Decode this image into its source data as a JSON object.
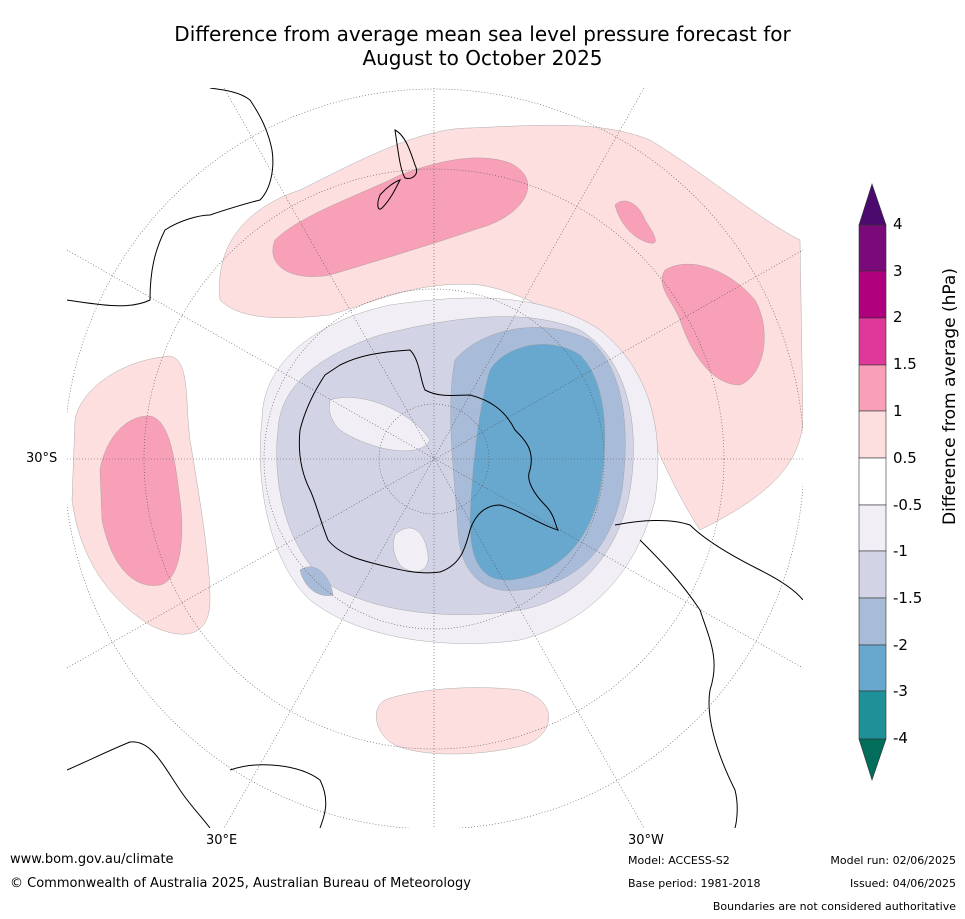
{
  "title": {
    "line1": "Difference from average mean sea level pressure forecast for",
    "line2": "August to October 2025"
  },
  "map": {
    "projection": "south polar stereographic",
    "graticule_labels": {
      "left": "30°S",
      "bottom_left": "30°E",
      "bottom_right": "30°W"
    },
    "landmasses_shown": [
      "Antarctica",
      "Australia",
      "New Zealand",
      "South America",
      "Southern Africa"
    ]
  },
  "colorbar": {
    "label": "Difference from average (hPa)",
    "ticks": [
      "4",
      "3",
      "2",
      "1.5",
      "1",
      "0.5",
      "-0.5",
      "-1",
      "-1.5",
      "-2",
      "-3",
      "-4"
    ],
    "colors": {
      "gt_4": "#4b0a6e",
      "3_to_4": "#7a0a7a",
      "2_to_3": "#b0007e",
      "1.5_to_2": "#e0389a",
      "1_to_1.5": "#f8a0b8",
      "0.5_to_1": "#fddfdf",
      "-0.5_to_0.5": "#ffffff",
      "-1_to_-0.5": "#f2eef5",
      "-1.5_to_-1": "#d2d4e6",
      "-2_to_-1.5": "#a8bcd9",
      "-3_to_-2": "#68a8cf",
      "-4_to_-3": "#1e9098",
      "lt_-4": "#006e5a"
    }
  },
  "footer": {
    "url": "www.bom.gov.au/climate",
    "copyright": "© Commonwealth of Australia 2025, Australian Bureau of Meteorology",
    "model": "Model: ACCESS-S2",
    "base_period": "Base period: 1981-2018",
    "model_run": "Model run: 02/06/2025",
    "issued": "Issued: 04/06/2025",
    "disclaimer": "Boundaries are not considered authoritative"
  }
}
